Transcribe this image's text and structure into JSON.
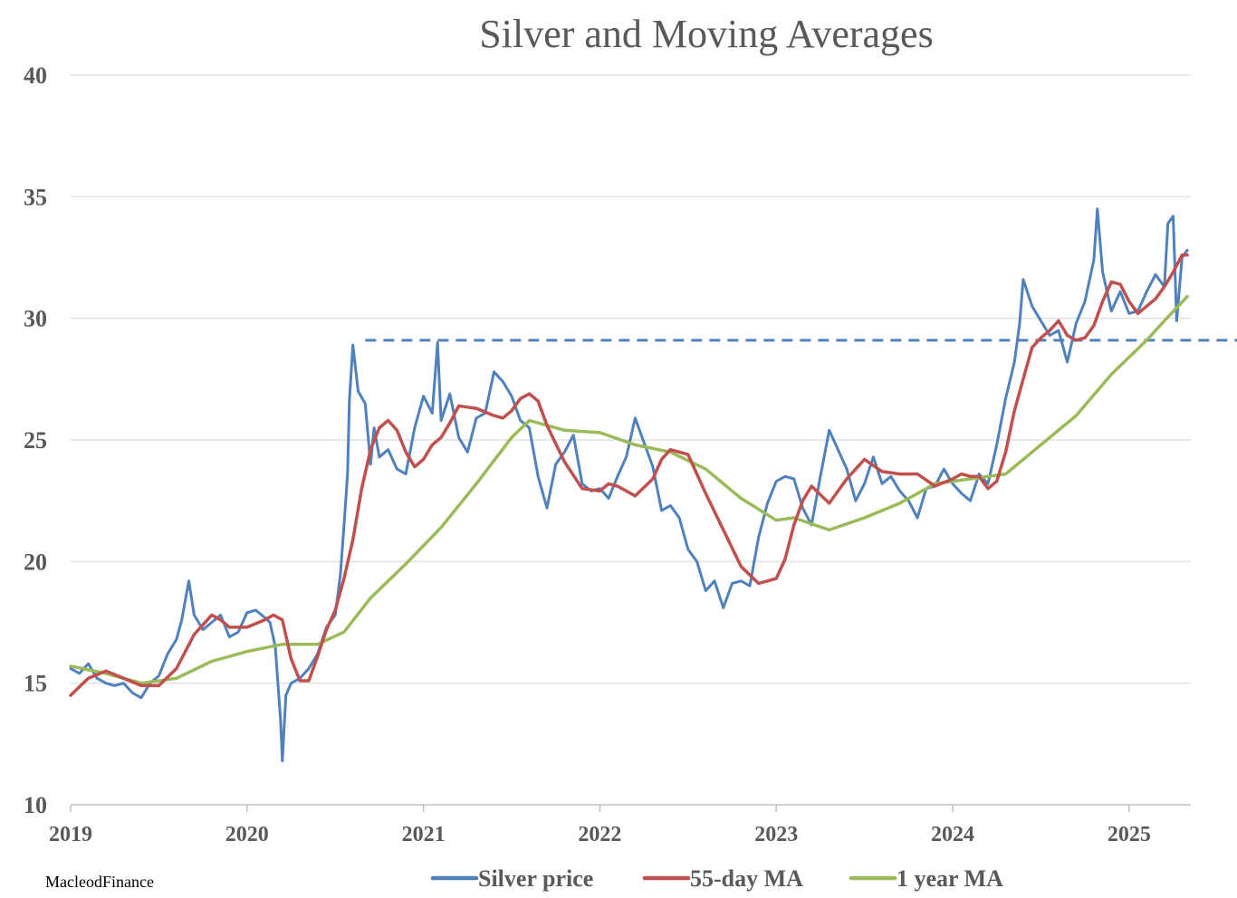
{
  "chart_data": {
    "type": "line",
    "title": "Silver and Moving Averages",
    "source": "MacleodFinance",
    "xlabel": "",
    "ylabel": "",
    "xlim": [
      2019.0,
      2025.35
    ],
    "ylim": [
      10,
      40
    ],
    "y_ticks": [
      10,
      15,
      20,
      25,
      30,
      35,
      40
    ],
    "x_ticks": [
      2019,
      2020,
      2021,
      2022,
      2023,
      2024,
      2025
    ],
    "grid": "horizontal",
    "legend_position": "bottom",
    "reference_line": {
      "style": "dashed",
      "color": "#4F81BD",
      "y": 29.1,
      "x_start": 2020.67
    },
    "series": [
      {
        "name": "Silver price",
        "color": "#4F81BD",
        "x": [
          2019.0,
          2019.05,
          2019.1,
          2019.15,
          2019.2,
          2019.25,
          2019.3,
          2019.35,
          2019.4,
          2019.45,
          2019.5,
          2019.55,
          2019.6,
          2019.63,
          2019.67,
          2019.7,
          2019.75,
          2019.8,
          2019.85,
          2019.9,
          2019.95,
          2020.0,
          2020.05,
          2020.1,
          2020.13,
          2020.16,
          2020.19,
          2020.2,
          2020.22,
          2020.25,
          2020.3,
          2020.35,
          2020.4,
          2020.45,
          2020.5,
          2020.53,
          2020.55,
          2020.57,
          2020.58,
          2020.6,
          2020.63,
          2020.67,
          2020.7,
          2020.72,
          2020.75,
          2020.8,
          2020.85,
          2020.9,
          2020.95,
          2021.0,
          2021.05,
          2021.08,
          2021.1,
          2021.15,
          2021.2,
          2021.25,
          2021.3,
          2021.35,
          2021.4,
          2021.45,
          2021.5,
          2021.55,
          2021.6,
          2021.65,
          2021.7,
          2021.75,
          2021.8,
          2021.85,
          2021.9,
          2021.95,
          2022.0,
          2022.05,
          2022.1,
          2022.15,
          2022.2,
          2022.25,
          2022.3,
          2022.35,
          2022.4,
          2022.45,
          2022.5,
          2022.55,
          2022.6,
          2022.65,
          2022.7,
          2022.75,
          2022.8,
          2022.85,
          2022.9,
          2022.95,
          2023.0,
          2023.05,
          2023.1,
          2023.15,
          2023.2,
          2023.25,
          2023.3,
          2023.35,
          2023.4,
          2023.45,
          2023.5,
          2023.55,
          2023.6,
          2023.65,
          2023.7,
          2023.75,
          2023.8,
          2023.85,
          2023.9,
          2023.95,
          2024.0,
          2024.05,
          2024.1,
          2024.15,
          2024.2,
          2024.25,
          2024.3,
          2024.35,
          2024.38,
          2024.4,
          2024.45,
          2024.5,
          2024.55,
          2024.6,
          2024.65,
          2024.7,
          2024.75,
          2024.8,
          2024.82,
          2024.85,
          2024.9,
          2024.95,
          2025.0,
          2025.05,
          2025.1,
          2025.15,
          2025.2,
          2025.22,
          2025.25,
          2025.27,
          2025.3,
          2025.33
        ],
        "y": [
          15.6,
          15.4,
          15.8,
          15.2,
          15.0,
          14.9,
          15.0,
          14.6,
          14.4,
          15.0,
          15.3,
          16.2,
          16.8,
          17.6,
          19.2,
          17.8,
          17.2,
          17.5,
          17.8,
          16.9,
          17.1,
          17.9,
          18.0,
          17.7,
          17.5,
          16.5,
          13.5,
          11.8,
          14.5,
          15.0,
          15.2,
          15.6,
          16.2,
          17.3,
          17.8,
          19.5,
          21.5,
          23.6,
          26.6,
          28.9,
          27.0,
          26.5,
          24.0,
          25.5,
          24.3,
          24.6,
          23.8,
          23.6,
          25.5,
          26.8,
          26.1,
          29.0,
          25.8,
          26.9,
          25.1,
          24.5,
          25.9,
          26.1,
          27.8,
          27.4,
          26.8,
          25.8,
          25.5,
          23.5,
          22.2,
          24.0,
          24.5,
          25.2,
          23.2,
          22.9,
          23.0,
          22.6,
          23.5,
          24.3,
          25.9,
          24.9,
          23.9,
          22.1,
          22.3,
          21.8,
          20.5,
          20.0,
          18.8,
          19.2,
          18.1,
          19.1,
          19.2,
          19.0,
          21.0,
          22.4,
          23.3,
          23.5,
          23.4,
          22.2,
          21.5,
          23.5,
          25.4,
          24.6,
          23.8,
          22.5,
          23.2,
          24.3,
          23.2,
          23.5,
          22.9,
          22.5,
          21.8,
          23.0,
          23.1,
          23.8,
          23.2,
          22.8,
          22.5,
          23.6,
          23.2,
          24.8,
          26.7,
          28.2,
          29.8,
          31.6,
          30.5,
          29.9,
          29.3,
          29.5,
          28.2,
          29.8,
          30.7,
          32.4,
          34.5,
          31.9,
          30.3,
          31.1,
          30.2,
          30.3,
          31.1,
          31.8,
          31.3,
          33.9,
          34.2,
          29.9,
          32.5,
          32.8
        ]
      },
      {
        "name": "55-day MA",
        "color": "#C0504D",
        "x": [
          2019.0,
          2019.1,
          2019.2,
          2019.3,
          2019.4,
          2019.5,
          2019.6,
          2019.7,
          2019.8,
          2019.85,
          2019.9,
          2020.0,
          2020.1,
          2020.15,
          2020.2,
          2020.25,
          2020.3,
          2020.35,
          2020.4,
          2020.45,
          2020.5,
          2020.55,
          2020.6,
          2020.65,
          2020.7,
          2020.75,
          2020.8,
          2020.85,
          2020.9,
          2020.95,
          2021.0,
          2021.05,
          2021.1,
          2021.15,
          2021.2,
          2021.3,
          2021.4,
          2021.45,
          2021.5,
          2021.55,
          2021.6,
          2021.65,
          2021.7,
          2021.8,
          2021.9,
          2022.0,
          2022.05,
          2022.1,
          2022.2,
          2022.3,
          2022.35,
          2022.4,
          2022.5,
          2022.6,
          2022.7,
          2022.8,
          2022.9,
          2023.0,
          2023.05,
          2023.1,
          2023.15,
          2023.2,
          2023.3,
          2023.4,
          2023.5,
          2023.6,
          2023.7,
          2023.8,
          2023.9,
          2024.0,
          2024.05,
          2024.1,
          2024.15,
          2024.2,
          2024.25,
          2024.3,
          2024.35,
          2024.4,
          2024.45,
          2024.5,
          2024.55,
          2024.6,
          2024.65,
          2024.7,
          2024.75,
          2024.8,
          2024.85,
          2024.9,
          2024.95,
          2025.0,
          2025.05,
          2025.1,
          2025.15,
          2025.2,
          2025.25,
          2025.3,
          2025.33
        ],
        "y": [
          14.5,
          15.2,
          15.5,
          15.2,
          14.9,
          14.9,
          15.6,
          17.0,
          17.8,
          17.6,
          17.3,
          17.3,
          17.6,
          17.8,
          17.6,
          16.0,
          15.1,
          15.1,
          16.1,
          17.2,
          18.0,
          19.3,
          20.9,
          23.0,
          24.6,
          25.5,
          25.8,
          25.4,
          24.5,
          23.9,
          24.2,
          24.8,
          25.1,
          25.7,
          26.4,
          26.3,
          26.0,
          25.9,
          26.2,
          26.7,
          26.9,
          26.6,
          25.6,
          24.1,
          23.0,
          22.9,
          23.2,
          23.1,
          22.7,
          23.4,
          24.2,
          24.6,
          24.4,
          22.8,
          21.3,
          19.8,
          19.1,
          19.3,
          20.1,
          21.5,
          22.5,
          23.1,
          22.4,
          23.4,
          24.2,
          23.7,
          23.6,
          23.6,
          23.1,
          23.4,
          23.6,
          23.5,
          23.5,
          23.0,
          23.3,
          24.5,
          26.2,
          27.5,
          28.8,
          29.2,
          29.5,
          29.9,
          29.3,
          29.1,
          29.2,
          29.7,
          30.7,
          31.5,
          31.4,
          30.7,
          30.2,
          30.5,
          30.8,
          31.3,
          31.9,
          32.6,
          32.6
        ]
      },
      {
        "name": "1 year MA",
        "color": "#9BBB59",
        "x": [
          2019.0,
          2019.2,
          2019.4,
          2019.6,
          2019.8,
          2020.0,
          2020.2,
          2020.4,
          2020.55,
          2020.7,
          2020.9,
          2021.1,
          2021.3,
          2021.5,
          2021.6,
          2021.8,
          2022.0,
          2022.2,
          2022.4,
          2022.6,
          2022.8,
          2023.0,
          2023.1,
          2023.3,
          2023.5,
          2023.7,
          2023.9,
          2024.1,
          2024.3,
          2024.5,
          2024.7,
          2024.9,
          2025.1,
          2025.2,
          2025.33
        ],
        "y": [
          15.7,
          15.4,
          15.0,
          15.2,
          15.9,
          16.3,
          16.6,
          16.6,
          17.1,
          18.5,
          19.9,
          21.4,
          23.2,
          25.1,
          25.8,
          25.4,
          25.3,
          24.8,
          24.5,
          23.8,
          22.6,
          21.7,
          21.8,
          21.3,
          21.8,
          22.4,
          23.2,
          23.4,
          23.6,
          24.8,
          26.0,
          27.7,
          29.1,
          29.9,
          30.9
        ]
      }
    ]
  }
}
